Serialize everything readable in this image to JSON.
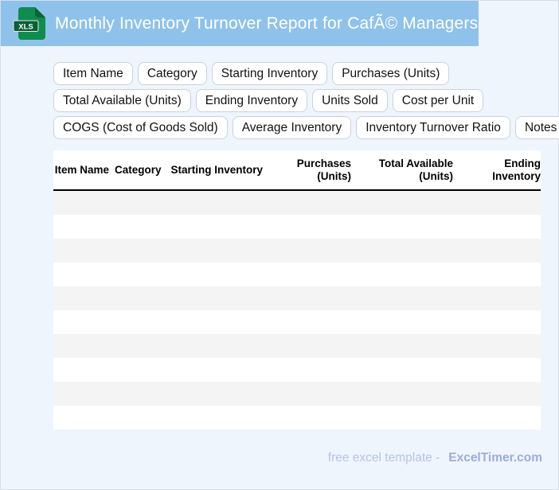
{
  "header": {
    "title": "Monthly Inventory Turnover Report for CafÃ© Managers",
    "file_icon_label": "XLS"
  },
  "chips": {
    "rows": [
      [
        "Item Name",
        "Category",
        "Starting Inventory",
        "Purchases (Units)"
      ],
      [
        "Total Available (Units)",
        "Ending Inventory",
        "Units Sold",
        "Cost per Unit"
      ],
      [
        "COGS (Cost of Goods Sold)",
        "Average Inventory",
        "Inventory Turnover Ratio",
        "Notes"
      ]
    ]
  },
  "table": {
    "headers": [
      "Item Name",
      "Category",
      "Starting Inventory",
      "Purchases (Units)",
      "Total Available (Units)",
      "Ending Inventory"
    ],
    "empty_row_count": 10
  },
  "footer": {
    "tagline": "free excel template -",
    "brand": "ExcelTimer.com"
  },
  "colors": {
    "page_bg": "#eef5fd",
    "header_band": "#8fc2ea",
    "icon_body_green": "#0f8c4f",
    "icon_fold_green": "#0a6437",
    "icon_badge_green": "#0b5e36",
    "row_stripe": "#f4f4f5",
    "header_rule": "#000000",
    "footer_tagline": "#b7c2e9",
    "footer_brand": "#9dace0"
  }
}
